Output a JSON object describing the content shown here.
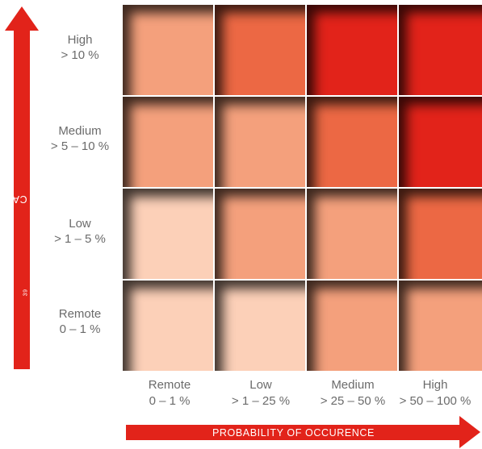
{
  "y_axis": {
    "label": "PLANNED FREE CASH FLOW IMPACT",
    "footnote": "39",
    "levels": [
      {
        "name": "High",
        "range": "> 10 %"
      },
      {
        "name": "Medium",
        "range": "> 5 – 10 %"
      },
      {
        "name": "Low",
        "range": "> 1 – 5 %"
      },
      {
        "name": "Remote",
        "range": "0 – 1 %"
      }
    ]
  },
  "x_axis": {
    "label": "PROBABILITY OF OCCURENCE",
    "levels": [
      {
        "name": "Remote",
        "range": "0 – 1 %"
      },
      {
        "name": "Low",
        "range": "> 1 – 25 %"
      },
      {
        "name": "Medium",
        "range": "> 25 – 50 %"
      },
      {
        "name": "High",
        "range": "> 50 – 100 %"
      }
    ]
  },
  "risk_colors": {
    "1": "#fcd0b8",
    "2": "#f4a07c",
    "3": "#ec6844",
    "4": "#e2231a"
  },
  "matrix": [
    [
      2,
      3,
      4,
      4
    ],
    [
      2,
      2,
      3,
      4
    ],
    [
      1,
      2,
      2,
      3
    ],
    [
      1,
      1,
      2,
      2
    ]
  ],
  "colors": {
    "arrow": "#e2231a",
    "label_text": "#6b6b6b"
  }
}
